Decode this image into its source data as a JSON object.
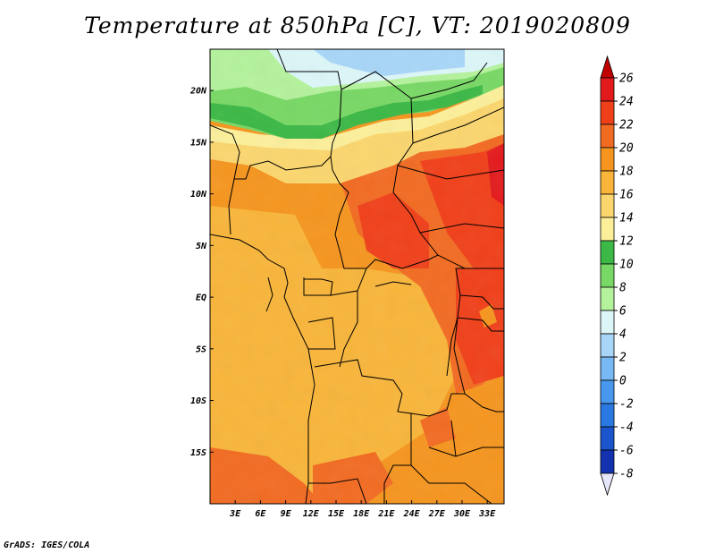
{
  "title": "Temperature at 850hPa [C], VT: 2019020809",
  "credit": "GrADS: IGES/COLA",
  "map": {
    "lon_range": [
      0,
      35
    ],
    "lat_range": [
      -20,
      24
    ],
    "lat_ticks": [
      {
        "value": 20,
        "label": "20N"
      },
      {
        "value": 15,
        "label": "15N"
      },
      {
        "value": 10,
        "label": "10N"
      },
      {
        "value": 5,
        "label": "5N"
      },
      {
        "value": 0,
        "label": "EQ"
      },
      {
        "value": -5,
        "label": "5S"
      },
      {
        "value": -10,
        "label": "10S"
      },
      {
        "value": -15,
        "label": "15S"
      }
    ],
    "lon_ticks": [
      {
        "value": 3,
        "label": "3E"
      },
      {
        "value": 6,
        "label": "6E"
      },
      {
        "value": 9,
        "label": "9E"
      },
      {
        "value": 12,
        "label": "12E"
      },
      {
        "value": 15,
        "label": "15E"
      },
      {
        "value": 18,
        "label": "18E"
      },
      {
        "value": 21,
        "label": "21E"
      },
      {
        "value": 24,
        "label": "24E"
      },
      {
        "value": 27,
        "label": "27E"
      },
      {
        "value": 30,
        "label": "30E"
      },
      {
        "value": 33,
        "label": "33E"
      }
    ]
  },
  "colorbar": {
    "levels": [
      {
        "value": "26",
        "color": "#e31a1c"
      },
      {
        "value": "24",
        "color": "#f0401a"
      },
      {
        "value": "22",
        "color": "#f26b22"
      },
      {
        "value": "20",
        "color": "#f5951f"
      },
      {
        "value": "18",
        "color": "#f8b53a"
      },
      {
        "value": "16",
        "color": "#fbd66e"
      },
      {
        "value": "14",
        "color": "#fcef9a"
      },
      {
        "value": "12",
        "color": "#3cb846"
      },
      {
        "value": "10",
        "color": "#78d865"
      },
      {
        "value": "8",
        "color": "#b4f29c"
      },
      {
        "value": "6",
        "color": "#dcf6f8"
      },
      {
        "value": "4",
        "color": "#a8d6f8"
      },
      {
        "value": "2",
        "color": "#78b8f4"
      },
      {
        "value": "0",
        "color": "#4898ee"
      },
      {
        "value": "-2",
        "color": "#2a78e2"
      },
      {
        "value": "-4",
        "color": "#1a55cc"
      },
      {
        "value": "-6",
        "color": "#1232b0"
      },
      {
        "value": "-8",
        "color": "#0a1478"
      }
    ],
    "under_color": "#e6e6fa",
    "over_color": "#c00000"
  }
}
